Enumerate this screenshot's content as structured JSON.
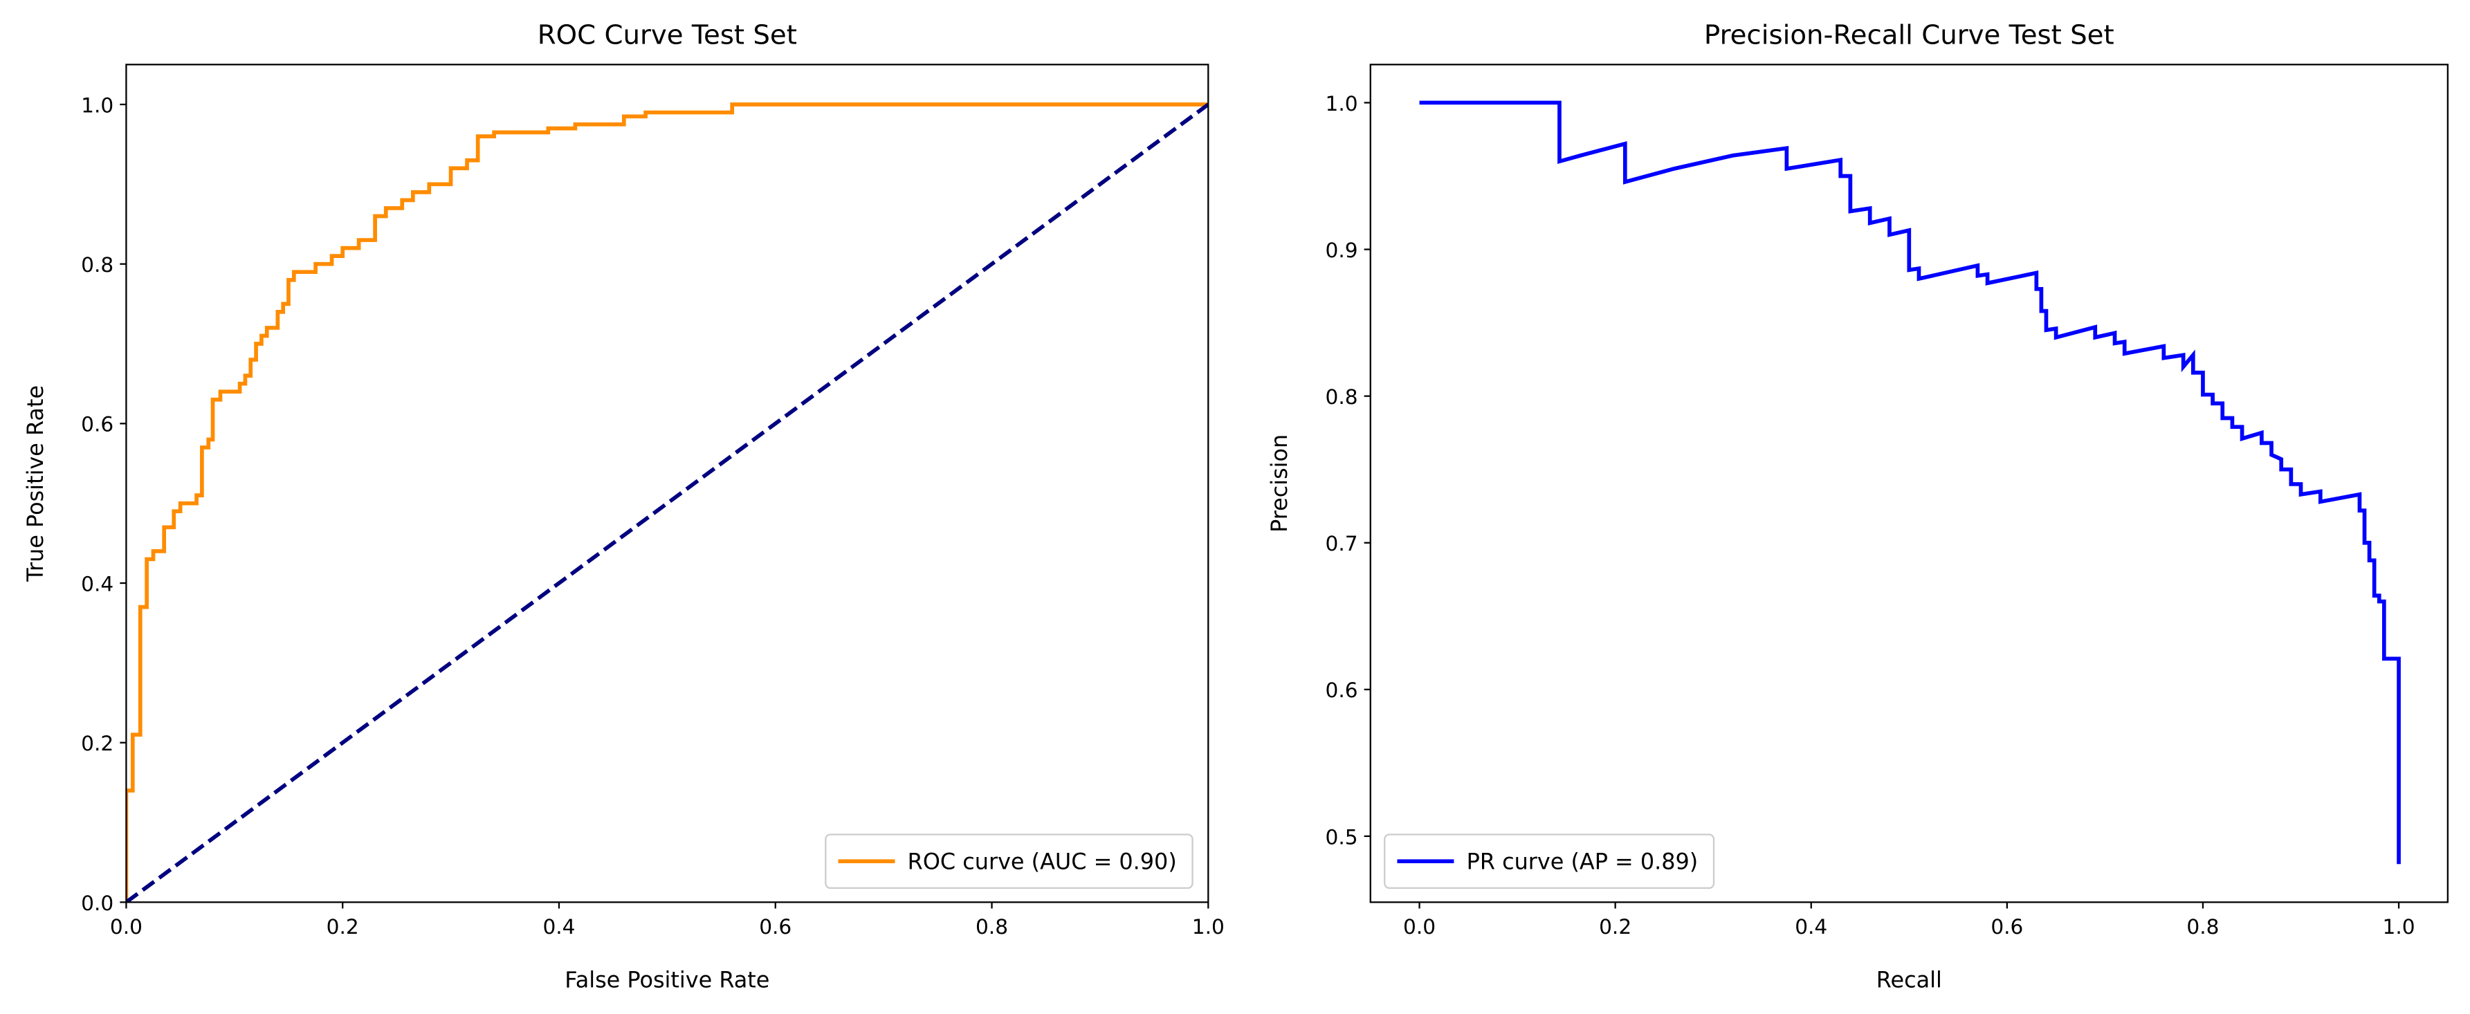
{
  "chart_data": [
    {
      "type": "line",
      "title": "ROC Curve Test Set",
      "xlabel": "False Positive Rate",
      "ylabel": "True Positive Rate",
      "xlim": [
        0,
        1
      ],
      "ylim": [
        0,
        1.05
      ],
      "xticks": [
        {
          "value": 0,
          "label": "0.0"
        },
        0.2,
        0.4,
        0.6,
        0.8,
        {
          "value": 1,
          "label": "1.0"
        }
      ],
      "yticks": [
        {
          "value": 0,
          "label": "0.0"
        },
        0.2,
        0.4,
        0.6,
        0.8,
        {
          "value": 1,
          "label": "1.0"
        }
      ],
      "legend": "lower right",
      "series": [
        {
          "name": "ROC curve (AUC = 0.90)",
          "color": "darkorange",
          "x": [
            0,
            0,
            0.006,
            0.006,
            0.013,
            0.013,
            0.019,
            0.019,
            0.025,
            0.025,
            0.035,
            0.035,
            0.044,
            0.044,
            0.05,
            0.05,
            0.065,
            0.065,
            0.07,
            0.07,
            0.076,
            0.076,
            0.08,
            0.08,
            0.087,
            0.087,
            0.105,
            0.105,
            0.11,
            0.11,
            0.115,
            0.115,
            0.12,
            0.12,
            0.125,
            0.125,
            0.13,
            0.13,
            0.14,
            0.14,
            0.145,
            0.145,
            0.15,
            0.15,
            0.155,
            0.155,
            0.175,
            0.175,
            0.19,
            0.19,
            0.2,
            0.2,
            0.215,
            0.215,
            0.23,
            0.23,
            0.24,
            0.24,
            0.255,
            0.255,
            0.265,
            0.265,
            0.28,
            0.28,
            0.3,
            0.3,
            0.315,
            0.315,
            0.325,
            0.325,
            0.34,
            0.34,
            0.39,
            0.39,
            0.415,
            0.415,
            0.46,
            0.46,
            0.48,
            0.48,
            0.56,
            0.56,
            1.0
          ],
          "values": [
            0,
            0.14,
            0.14,
            0.21,
            0.21,
            0.37,
            0.37,
            0.43,
            0.43,
            0.44,
            0.44,
            0.47,
            0.47,
            0.49,
            0.49,
            0.5,
            0.5,
            0.51,
            0.51,
            0.57,
            0.57,
            0.58,
            0.58,
            0.63,
            0.63,
            0.64,
            0.64,
            0.65,
            0.65,
            0.66,
            0.66,
            0.68,
            0.68,
            0.7,
            0.7,
            0.71,
            0.71,
            0.72,
            0.72,
            0.74,
            0.74,
            0.75,
            0.75,
            0.78,
            0.78,
            0.79,
            0.79,
            0.8,
            0.8,
            0.81,
            0.81,
            0.82,
            0.82,
            0.83,
            0.83,
            0.86,
            0.86,
            0.87,
            0.87,
            0.88,
            0.88,
            0.89,
            0.89,
            0.9,
            0.9,
            0.92,
            0.92,
            0.93,
            0.93,
            0.96,
            0.96,
            0.965,
            0.965,
            0.97,
            0.97,
            0.975,
            0.975,
            0.985,
            0.985,
            0.99,
            0.99,
            1.0,
            1.0
          ]
        },
        {
          "color": "navy",
          "dash": true,
          "x": [
            0,
            1
          ],
          "values": [
            0,
            1
          ]
        }
      ]
    },
    {
      "type": "line",
      "title": "Precision-Recall Curve Test Set",
      "xlabel": "Recall",
      "ylabel": "Precision",
      "xlim": [
        -0.05,
        1.05
      ],
      "ylim": [
        0.455,
        1.026
      ],
      "xticks": [
        {
          "value": 0,
          "label": "0.0"
        },
        0.2,
        0.4,
        0.6,
        0.8,
        {
          "value": 1,
          "label": "1.0"
        }
      ],
      "yticks": [
        0.5,
        0.6,
        0.7,
        0.8,
        0.9,
        {
          "value": 1,
          "label": "1.0"
        }
      ],
      "legend": "lower left",
      "series": [
        {
          "name": "PR curve (AP = 0.89)",
          "color": "blue",
          "x": [
            0,
            0.143,
            0.143,
            0.17,
            0.21,
            0.21,
            0.26,
            0.32,
            0.375,
            0.375,
            0.43,
            0.43,
            0.44,
            0.44,
            0.46,
            0.46,
            0.48,
            0.48,
            0.5,
            0.5,
            0.51,
            0.51,
            0.57,
            0.57,
            0.58,
            0.58,
            0.63,
            0.63,
            0.635,
            0.635,
            0.64,
            0.64,
            0.65,
            0.65,
            0.69,
            0.69,
            0.71,
            0.71,
            0.72,
            0.72,
            0.76,
            0.76,
            0.78,
            0.78,
            0.79,
            0.79,
            0.8,
            0.8,
            0.81,
            0.81,
            0.82,
            0.82,
            0.83,
            0.83,
            0.84,
            0.84,
            0.86,
            0.86,
            0.87,
            0.87,
            0.88,
            0.88,
            0.89,
            0.89,
            0.9,
            0.9,
            0.92,
            0.92,
            0.96,
            0.96,
            0.965,
            0.965,
            0.97,
            0.97,
            0.975,
            0.975,
            0.98,
            0.98,
            0.985,
            0.985,
            1.0,
            1.0
          ],
          "values": [
            1,
            1,
            0.96,
            0.965,
            0.972,
            0.946,
            0.955,
            0.964,
            0.969,
            0.955,
            0.961,
            0.95,
            0.95,
            0.926,
            0.928,
            0.918,
            0.921,
            0.91,
            0.913,
            0.886,
            0.887,
            0.88,
            0.889,
            0.882,
            0.883,
            0.877,
            0.884,
            0.873,
            0.873,
            0.858,
            0.858,
            0.845,
            0.846,
            0.84,
            0.847,
            0.84,
            0.843,
            0.836,
            0.837,
            0.829,
            0.834,
            0.826,
            0.828,
            0.82,
            0.828,
            0.816,
            0.816,
            0.801,
            0.801,
            0.795,
            0.795,
            0.785,
            0.785,
            0.779,
            0.779,
            0.771,
            0.775,
            0.768,
            0.768,
            0.76,
            0.757,
            0.75,
            0.75,
            0.74,
            0.74,
            0.733,
            0.735,
            0.728,
            0.733,
            0.722,
            0.722,
            0.7,
            0.7,
            0.688,
            0.688,
            0.664,
            0.664,
            0.66,
            0.66,
            0.621,
            0.621,
            0.481
          ]
        }
      ]
    }
  ]
}
